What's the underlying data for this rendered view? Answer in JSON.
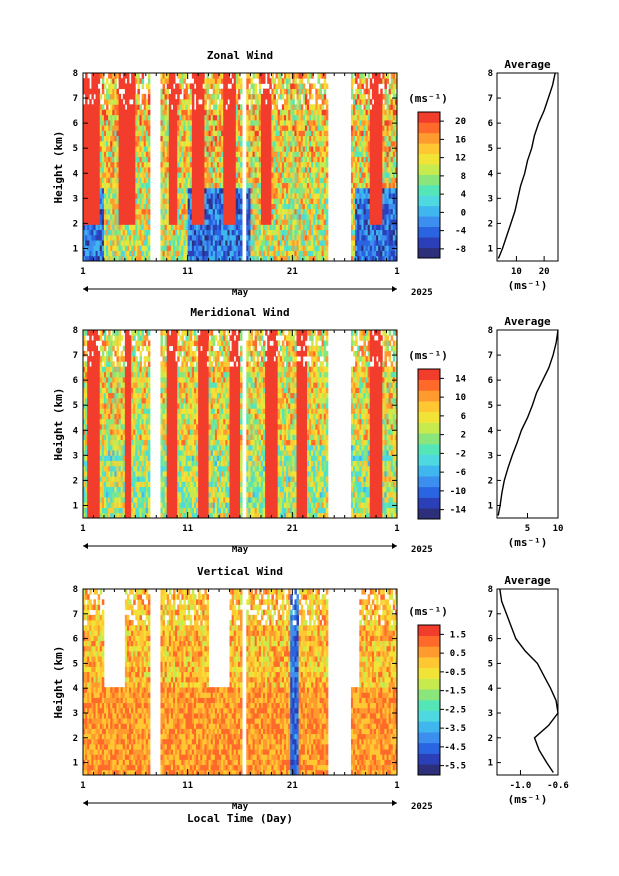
{
  "figure": {
    "xlabel": "Local Time (Day)",
    "month_label": "May",
    "year_label": "2025",
    "x_ticks": [
      "1",
      "11",
      "21",
      "1"
    ]
  },
  "chart_data": [
    {
      "type": "heatmap",
      "title": "Zonal Wind",
      "ylabel": "Height (km)",
      "xlabel": "May",
      "ylim": [
        0.5,
        8
      ],
      "y_ticks": [
        "1",
        "2",
        "3",
        "4",
        "5",
        "6",
        "7",
        "8"
      ],
      "colorbar_unit": "(ms⁻¹)",
      "colorbar_ticks": [
        "20",
        "16",
        "12",
        "8",
        "4",
        "0",
        "-4",
        "-8"
      ],
      "colorbar_range": [
        -10,
        22
      ],
      "profile": {
        "title": "Average",
        "xlabel": "(ms⁻¹)",
        "x_ticks": [
          "10",
          "20"
        ],
        "xlim": [
          3,
          25
        ],
        "y": [
          0.6,
          1,
          1.5,
          2,
          2.5,
          3,
          3.5,
          4,
          4.5,
          5,
          5.5,
          6,
          6.5,
          7,
          7.5,
          8
        ],
        "x": [
          3.5,
          5,
          6.5,
          8,
          9.5,
          10.5,
          11.5,
          13,
          14,
          15.5,
          16.5,
          18,
          20,
          21.5,
          23,
          24
        ]
      }
    },
    {
      "type": "heatmap",
      "title": "Meridional Wind",
      "ylabel": "Height (km)",
      "xlabel": "May",
      "ylim": [
        0.5,
        8
      ],
      "y_ticks": [
        "1",
        "2",
        "3",
        "4",
        "5",
        "6",
        "7",
        "8"
      ],
      "colorbar_unit": "(ms⁻¹)",
      "colorbar_ticks": [
        "14",
        "10",
        "6",
        "2",
        "-2",
        "-6",
        "-10",
        "-14"
      ],
      "colorbar_range": [
        -16,
        16
      ],
      "profile": {
        "title": "Average",
        "xlabel": "(ms⁻¹)",
        "x_ticks": [
          "5",
          "10"
        ],
        "xlim": [
          0,
          10
        ],
        "y": [
          0.6,
          1,
          1.5,
          2,
          2.5,
          3,
          3.5,
          4,
          4.5,
          5,
          5.5,
          6,
          6.5,
          7,
          7.5,
          8
        ],
        "x": [
          0.2,
          0.5,
          0.8,
          1.2,
          1.8,
          2.5,
          3.3,
          4.0,
          5.0,
          5.8,
          6.5,
          7.5,
          8.5,
          9.2,
          9.7,
          10
        ]
      }
    },
    {
      "type": "heatmap",
      "title": "Vertical Wind",
      "ylabel": "Height (km)",
      "xlabel": "May",
      "ylim": [
        0.5,
        8
      ],
      "y_ticks": [
        "1",
        "2",
        "3",
        "4",
        "5",
        "6",
        "7",
        "8"
      ],
      "colorbar_unit": "(ms⁻¹)",
      "colorbar_ticks": [
        "1.5",
        "0.5",
        "-0.5",
        "-1.5",
        "-2.5",
        "-3.5",
        "-4.5",
        "-5.5"
      ],
      "colorbar_range": [
        -6,
        2
      ],
      "profile": {
        "title": "Average",
        "xlabel": "(ms⁻¹)",
        "x_ticks": [
          "-1.0",
          "-0.6"
        ],
        "xlim": [
          -1.25,
          -0.6
        ],
        "y": [
          0.6,
          1,
          1.5,
          2,
          2.5,
          3,
          3.5,
          4,
          4.5,
          5,
          5.5,
          6,
          6.5,
          7,
          7.5,
          8
        ],
        "x": [
          -0.65,
          -0.72,
          -0.8,
          -0.85,
          -0.7,
          -0.6,
          -0.62,
          -0.68,
          -0.75,
          -0.82,
          -0.95,
          -1.05,
          -1.1,
          -1.15,
          -1.2,
          -1.22
        ]
      }
    }
  ]
}
